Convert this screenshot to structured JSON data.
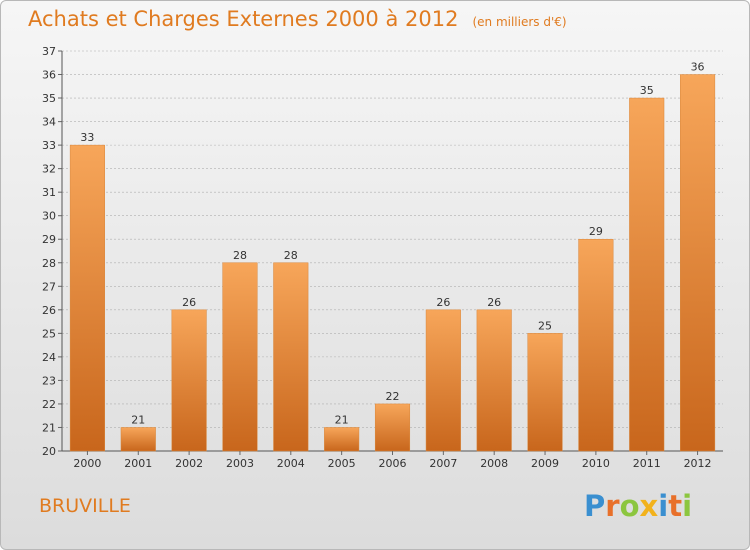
{
  "title": "Achats et Charges Externes 2000 à 2012",
  "subtitle": "(en milliers d'€)",
  "place_label": "BRUVILLE",
  "logo": {
    "letters": [
      "P",
      "r",
      "o",
      "x",
      "i",
      "t",
      "i"
    ],
    "colors": [
      "#3a8fd0",
      "#e8702a",
      "#8cc63f",
      "#f2b21c",
      "#3a8fd0",
      "#e8702a",
      "#8cc63f"
    ]
  },
  "colors": {
    "title": "#e07b20",
    "bar_light": "#f7a65a",
    "bar_dark": "#c8661c",
    "grid": "#b0b0b0"
  },
  "chart_data": {
    "type": "bar",
    "categories": [
      "2000",
      "2001",
      "2002",
      "2003",
      "2004",
      "2005",
      "2006",
      "2007",
      "2008",
      "2009",
      "2010",
      "2011",
      "2012"
    ],
    "values": [
      33,
      21,
      26,
      28,
      28,
      21,
      22,
      26,
      26,
      25,
      29,
      35,
      36
    ],
    "title": "Achats et Charges Externes 2000 à 2012",
    "subtitle": "(en milliers d'€)",
    "xlabel": "",
    "ylabel": "",
    "ylim": [
      20,
      37
    ],
    "yticks": [
      20,
      21,
      22,
      23,
      24,
      25,
      26,
      27,
      28,
      29,
      30,
      31,
      32,
      33,
      34,
      35,
      36,
      37
    ],
    "grid": true,
    "data_labels": true
  }
}
